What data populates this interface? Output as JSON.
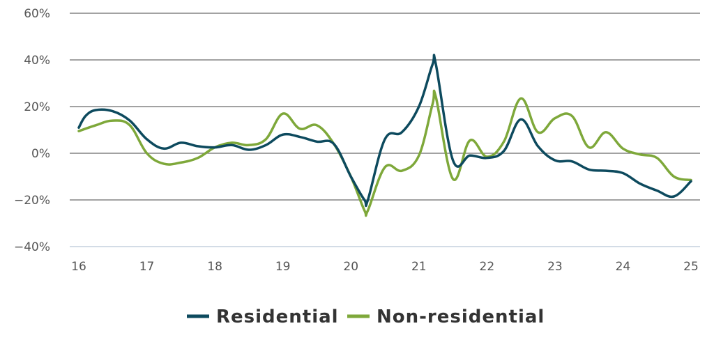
{
  "chart_data": {
    "type": "line",
    "title": "",
    "xlabel": "",
    "ylabel": "",
    "y_tick_labels": [
      "60%",
      "40%",
      "20%",
      "0%",
      "−20%",
      "−40%"
    ],
    "y_tick_values": [
      60,
      40,
      20,
      0,
      -20,
      -40
    ],
    "ylim": [
      -40,
      60
    ],
    "x_tick_labels": [
      "16",
      "17",
      "18",
      "19",
      "20",
      "21",
      "22",
      "23",
      "24",
      "25"
    ],
    "x_tick_values": [
      16,
      17,
      18,
      19,
      20,
      21,
      22,
      23,
      24,
      25
    ],
    "xlim": [
      16,
      25
    ],
    "grid": true,
    "legend_position": "bottom-center",
    "series": [
      {
        "name": "Residential",
        "color": "#0d4a5e",
        "x": [
          16.0,
          16.1,
          16.25,
          16.5,
          16.75,
          17.0,
          17.25,
          17.5,
          17.75,
          18.0,
          18.25,
          18.5,
          18.75,
          19.0,
          19.25,
          19.5,
          19.75,
          20.0,
          20.2,
          20.25,
          20.5,
          20.75,
          21.0,
          21.2,
          21.25,
          21.5,
          21.75,
          22.0,
          22.25,
          22.5,
          22.75,
          23.0,
          23.25,
          23.5,
          23.75,
          24.0,
          24.25,
          24.5,
          24.75,
          25.0
        ],
        "y": [
          11,
          16,
          18.5,
          18,
          14,
          6,
          2,
          4.5,
          3,
          2.5,
          3.5,
          1.5,
          3.5,
          8,
          7,
          5,
          4,
          -10,
          -20,
          -20,
          6,
          9,
          20,
          38,
          38,
          -3,
          -1,
          -2,
          1,
          14.5,
          3,
          -3,
          -3.5,
          -7,
          -7.5,
          -8.5,
          -13,
          -16,
          -18.5,
          -12
        ]
      },
      {
        "name": "Non-residential",
        "color": "#7ea83a",
        "x": [
          16.0,
          16.25,
          16.5,
          16.75,
          17.0,
          17.25,
          17.5,
          17.75,
          18.0,
          18.25,
          18.5,
          18.75,
          19.0,
          19.25,
          19.5,
          19.75,
          20.0,
          20.2,
          20.25,
          20.5,
          20.75,
          21.0,
          21.2,
          21.25,
          21.5,
          21.75,
          22.0,
          22.25,
          22.5,
          22.75,
          23.0,
          23.25,
          23.5,
          23.75,
          24.0,
          24.25,
          24.5,
          24.75,
          25.0
        ],
        "y": [
          9.5,
          12,
          14,
          12,
          0,
          -4.5,
          -4,
          -2,
          2.5,
          4.5,
          3.5,
          6,
          17,
          10.5,
          12,
          4,
          -10,
          -24.5,
          -24.5,
          -6,
          -7.5,
          -1,
          21,
          24,
          -11,
          5.5,
          -1.5,
          5,
          23.5,
          9,
          15,
          16,
          2.5,
          9,
          2,
          -0.5,
          -2,
          -10,
          -11.5
        ]
      }
    ]
  }
}
